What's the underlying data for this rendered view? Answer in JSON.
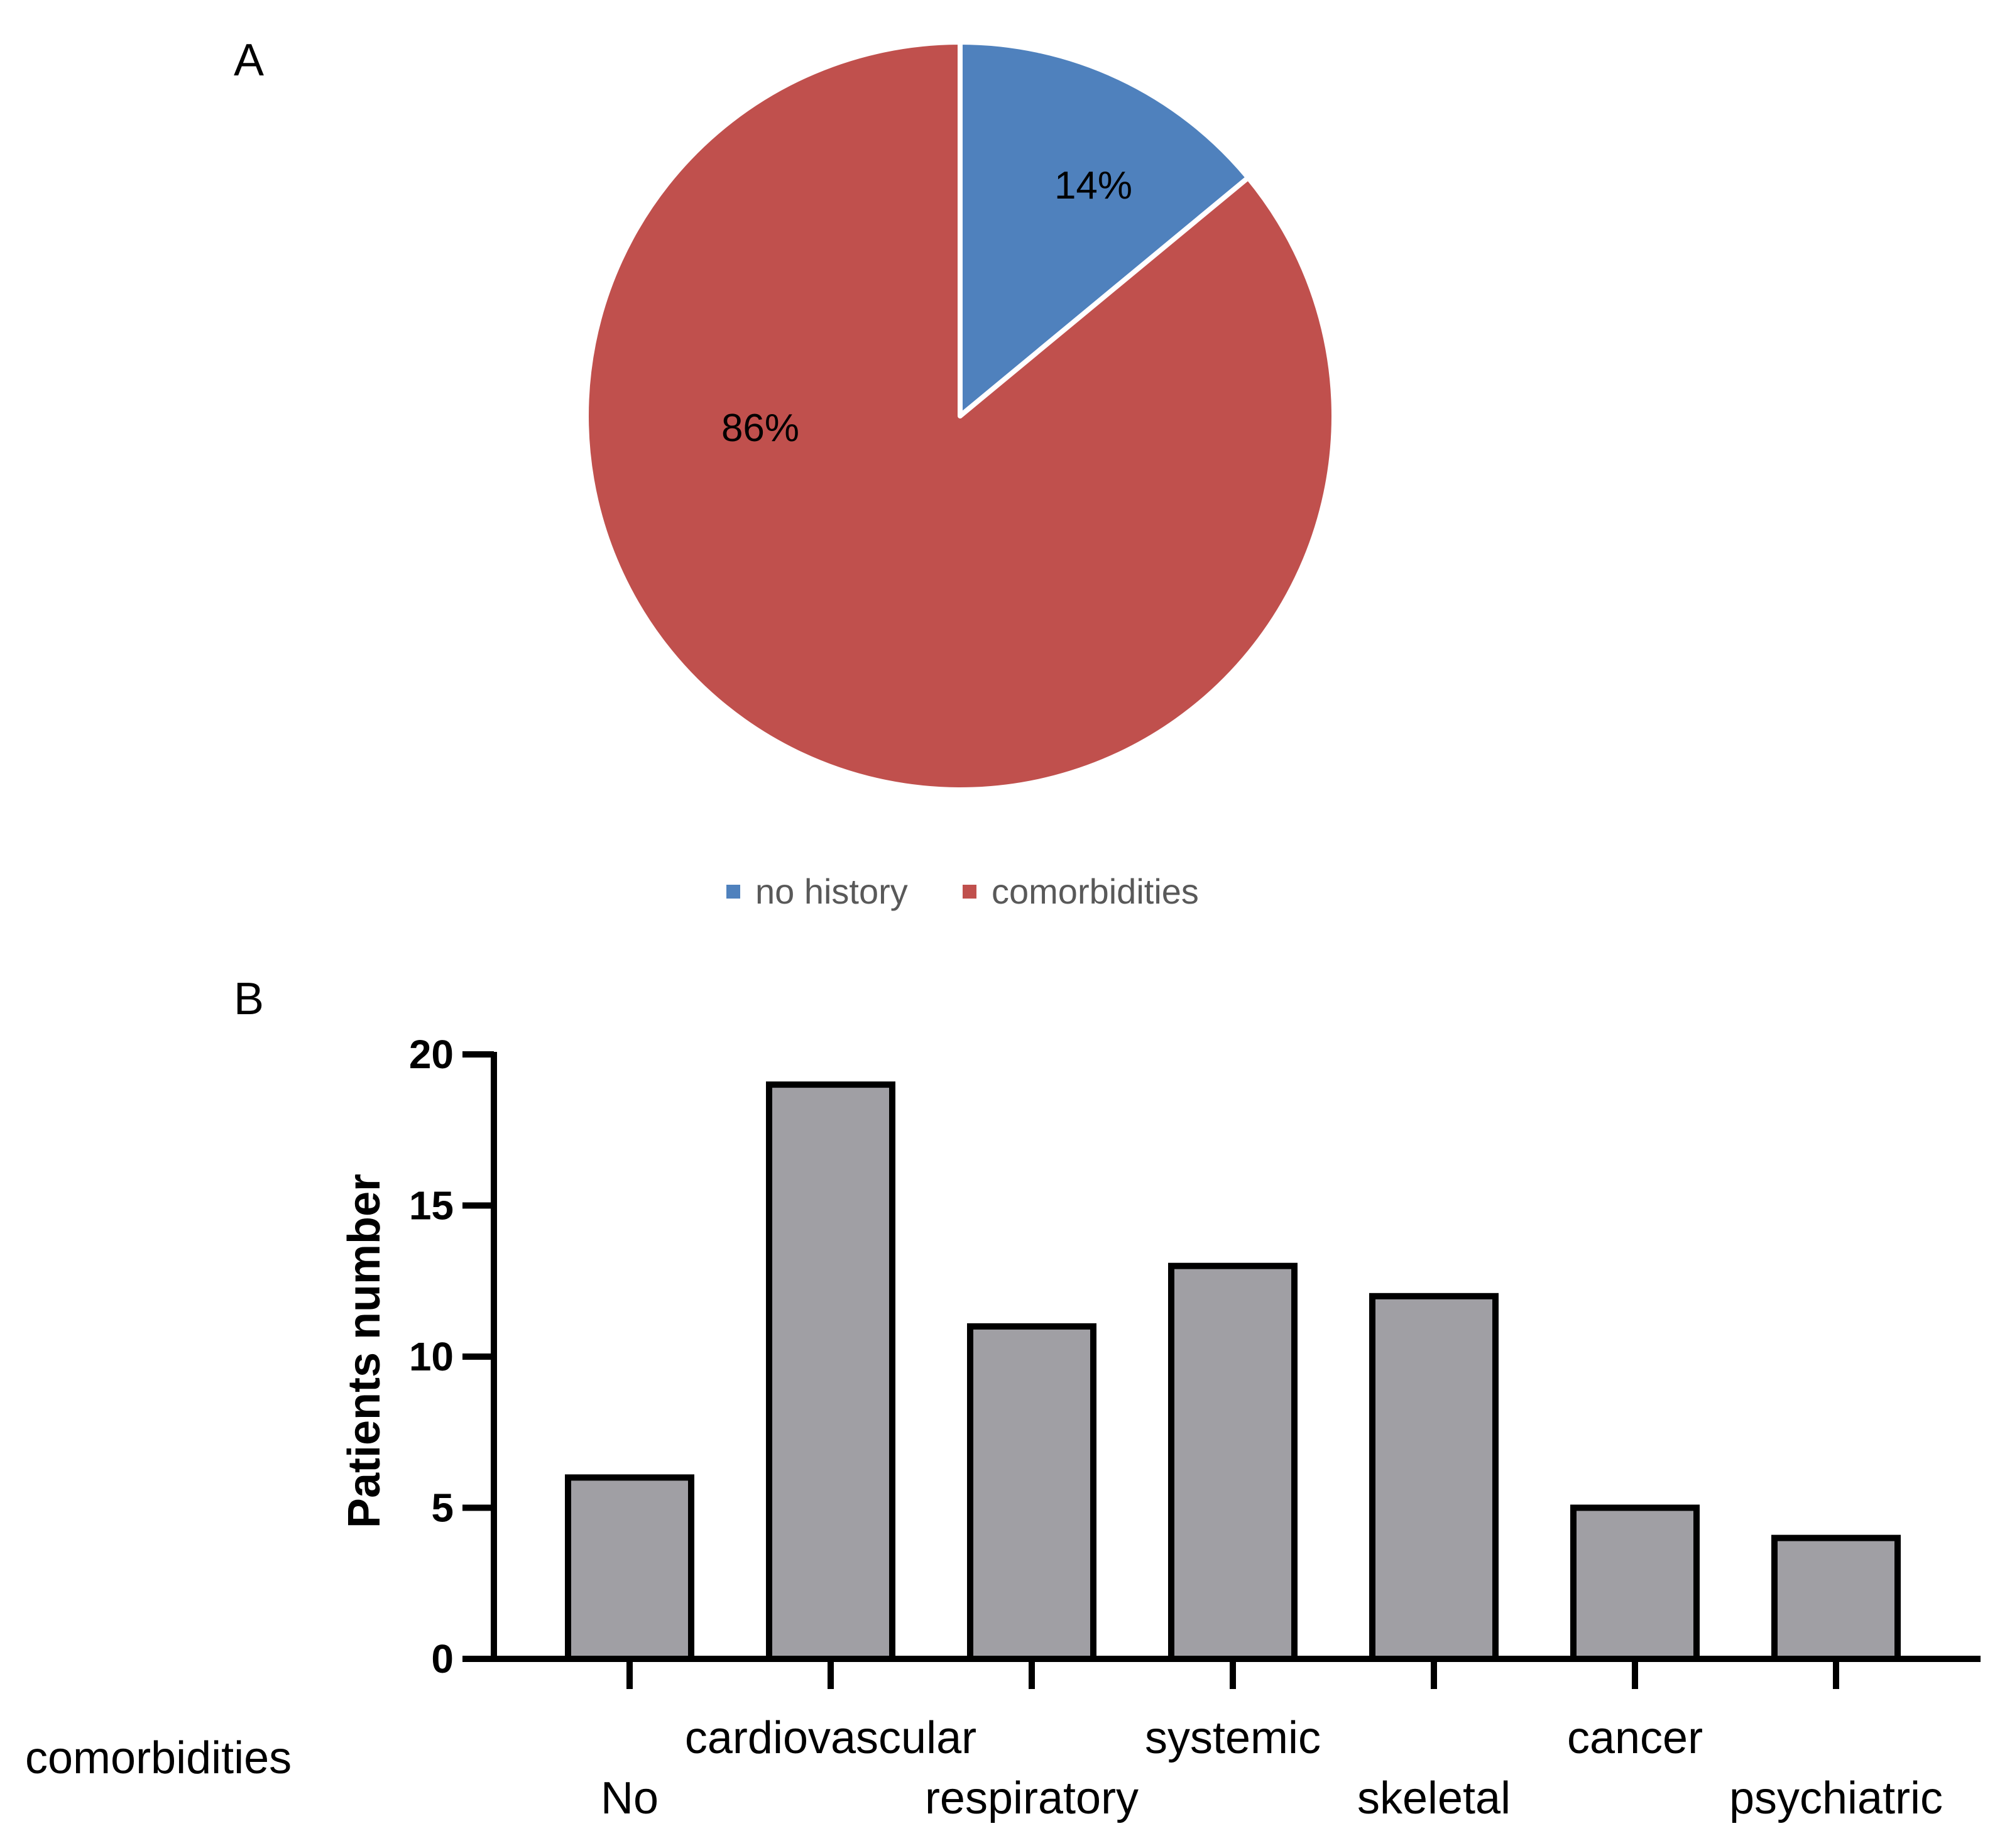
{
  "chart_data": [
    {
      "type": "pie",
      "panel_label": "A",
      "slices": [
        {
          "name": "no history",
          "value": 14,
          "label": "14%",
          "color": "#4f81bd"
        },
        {
          "name": "comorbidities",
          "value": 86,
          "label": "86%",
          "color": "#c0504d"
        }
      ],
      "legend": [
        "no history",
        "comorbidities"
      ],
      "legend_position": "bottom"
    },
    {
      "type": "bar",
      "panel_label": "B",
      "categories": [
        "No",
        "cardiovascular",
        "respiratory",
        "systemic",
        "skeletal",
        "cancer",
        "psychiatric"
      ],
      "values": [
        6,
        19,
        11,
        13,
        12,
        5,
        4
      ],
      "ylabel": "Patients number",
      "xlabel": "",
      "row_label": "comorbidities",
      "ylim": [
        0,
        20
      ],
      "yticks": [
        0,
        5,
        10,
        15,
        20
      ],
      "bar_color": "#a09fa4",
      "edge_color": "#000000"
    }
  ]
}
